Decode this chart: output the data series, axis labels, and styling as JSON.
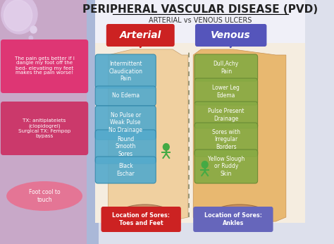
{
  "title": "PERIPHERAL VASCULAR DISEASE (PVD)",
  "subtitle": "ARTERIAL vs VENOUS ULCERS",
  "arterial_label": "Arterial",
  "venous_label": "Venous",
  "arterial_color": "#cc2222",
  "venous_color": "#5555bb",
  "arterial_bullets": [
    "Intermittent\nClaudication\nPain",
    "No Edema",
    "No Pulse or\nWeak Pulse\nNo Drainage",
    "Round\nSmooth\nSores",
    "Black\nEschar"
  ],
  "venous_bullets": [
    "Dull,Achy\nPain",
    "Lower Leg\nEdema",
    "Pulse Present\nDrainage",
    "Sores with\nIrregular\nBorders",
    "Yellow Slough\nor Ruddy\nSkin"
  ],
  "arterial_location": "Location of Sores:\nToes and Feet",
  "venous_location": "Location of Sores:\nAnkles",
  "left_note1": "The pain gets better if I\ndangle my foot off the\nbed- elevating my feet\nmakes the pain worse!",
  "left_note2": "TX: anitiplatelets\n(clopidogrel)\nSurgical TX: Fempop\nbypass",
  "left_note3": "Foot cool to\ntouch",
  "left_note1_color": "#e03070",
  "left_note2_color": "#cc3366",
  "left_note3_color": "#e87090",
  "title_color": "#222222",
  "title_fontsize": 11,
  "subtitle_fontsize": 7
}
